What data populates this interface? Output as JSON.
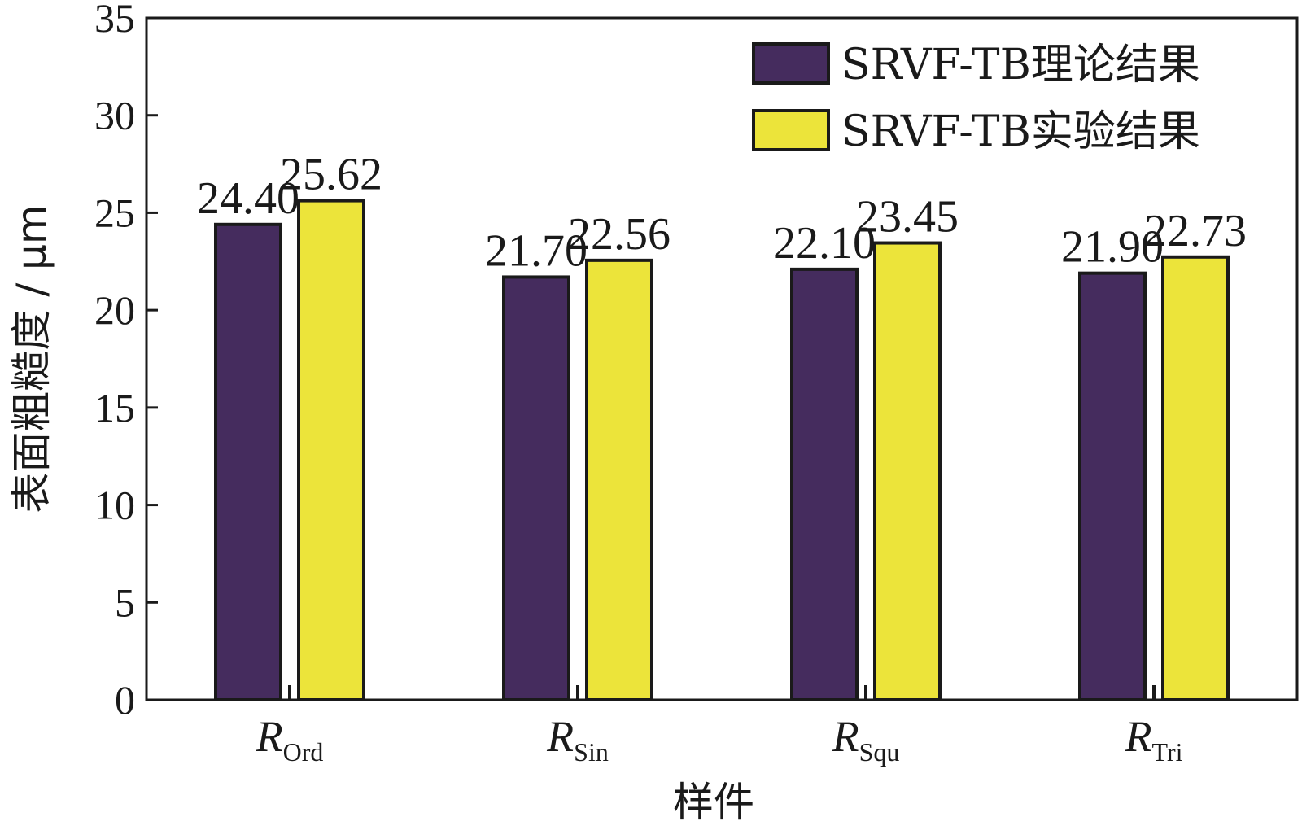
{
  "chart_data": {
    "type": "bar",
    "categories": [
      {
        "main": "R",
        "sub": "Ord"
      },
      {
        "main": "R",
        "sub": "Sin"
      },
      {
        "main": "R",
        "sub": "Squ"
      },
      {
        "main": "R",
        "sub": "Tri"
      }
    ],
    "series": [
      {
        "name": "SRVF-TB理论结果",
        "color": "#452c5e",
        "values": [
          24.4,
          21.7,
          22.1,
          21.9
        ],
        "labels": [
          "24.40",
          "21.70",
          "22.10",
          "21.90"
        ]
      },
      {
        "name": "SRVF-TB实验结果",
        "color": "#ece43a",
        "values": [
          25.62,
          22.56,
          23.45,
          22.73
        ],
        "labels": [
          "25.62",
          "22.56",
          "23.45",
          "22.73"
        ]
      }
    ],
    "xlabel": "样件",
    "ylabel": "表面粗糙度 / μm",
    "ylim": [
      0,
      35
    ],
    "yticks": [
      "0",
      "5",
      "10",
      "15",
      "20",
      "25",
      "30",
      "35"
    ],
    "grid": false,
    "legend_position": "top-right"
  }
}
